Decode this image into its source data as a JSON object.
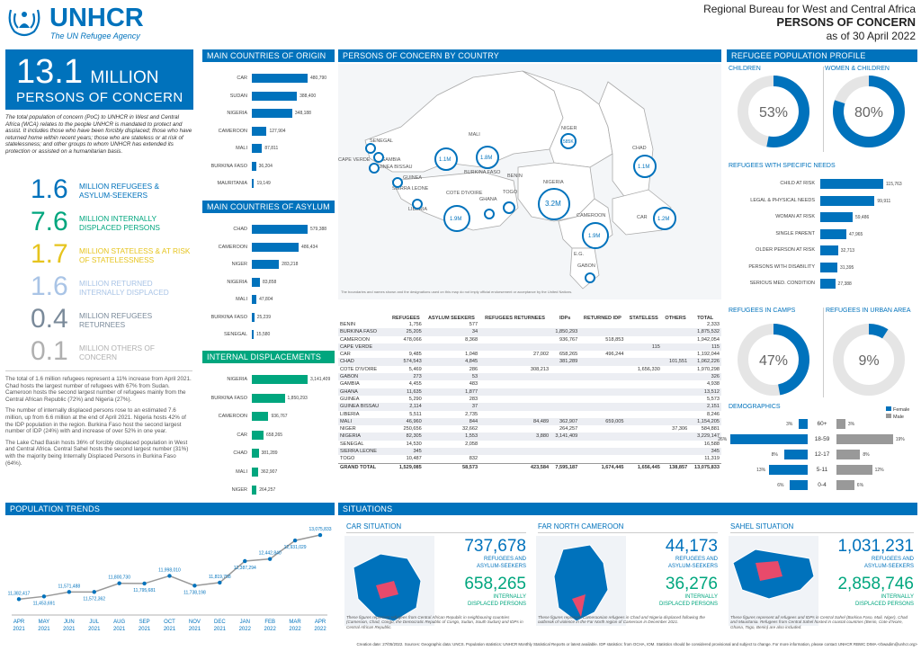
{
  "header": {
    "org": "UNHCR",
    "tagline": "The UN Refugee Agency",
    "region": "Regional Bureau for West and Central Africa",
    "title": "PERSONS OF CONCERN",
    "date": "as of 30 April 2022"
  },
  "hero": {
    "number": "13.1",
    "unit": "MILLION",
    "label": "PERSONS OF CONCERN"
  },
  "intro": "The total population of concern (PoC) to UNHCR in West and Central Africa (WCA) relates to the people UNHCR is mandated to protect and assist. It includes those who have been forcibly displaced; those who have returned home within recent years; those who are stateless or at risk of statelessness; and other groups to whom UNHCR has extended its protection or assisted on a humanitarian basis.",
  "kpis": [
    {
      "value": "1.6",
      "label": "MILLION REFUGEES & ASYLUM-SEEKERS",
      "color": "#0072bc"
    },
    {
      "value": "7.6",
      "label": "MILLION INTERNALLY DISPLACED PERSONS",
      "color": "#00a67e"
    },
    {
      "value": "1.7",
      "label": "MILLION STATELESS & AT RISK OF STATELESSNESS",
      "color": "#e6c41e"
    },
    {
      "value": "1.6",
      "label": "MILLION RETURNED INTERNALLY DISPLACED",
      "color": "#a9c4e6"
    },
    {
      "value": "0.4",
      "label": "MILLION REFUGEES RETURNEES",
      "color": "#7a8a9a"
    },
    {
      "value": "0.1",
      "label": "MILLION OTHERS OF CONCERN",
      "color": "#b0b0b0"
    }
  ],
  "notes": [
    "The total of 1.6 million refugees represent a 11% increase from April 2021. Chad hosts the largest number of refugees with 67% from Sudan. Cameroon hosts the second largest number of refugees mainly from the Central African Republic (72%) and Nigeria (27%).",
    "The number of internally displaced persons rose to an estimated 7.6 million, up from 6.6 million at the end of April 2021. Nigeria hosts 42% of the IDP population in the region. Burkina Faso host the second largest number of IDP (24%) with and increase of over 52% in one year.",
    "The Lake Chad Basin hosts 36% of forcibly displaced population in West and Central Africa. Central Sahel hosts the second largest number (31%) with the majority being Internally Displaced Persons in Burkina Faso (64%)."
  ],
  "origin": {
    "title": "MAIN COUNTRIES OF ORIGIN",
    "items": [
      [
        "CAR",
        "480,790",
        480790
      ],
      [
        "SUDAN",
        "388,400",
        388400
      ],
      [
        "NIGERIA",
        "348,188",
        348188
      ],
      [
        "CAMEROON",
        "127,904",
        127904
      ],
      [
        "MALI",
        "87,811",
        87811
      ],
      [
        "BURKINA FASO",
        "36,204",
        36204
      ],
      [
        "MAURITANIA",
        "19,149",
        19149
      ]
    ]
  },
  "asylum": {
    "title": "MAIN COUNTRIES OF ASYLUM",
    "items": [
      [
        "CHAD",
        "579,388",
        579388
      ],
      [
        "CAMEROON",
        "486,434",
        486434
      ],
      [
        "NIGER",
        "283,218",
        283218
      ],
      [
        "NIGERIA",
        "83,858",
        83858
      ],
      [
        "MALI",
        "47,804",
        47804
      ],
      [
        "BURKINA FASO",
        "25,239",
        25239
      ],
      [
        "SENEGAL",
        "15,580",
        15580
      ]
    ]
  },
  "idp": {
    "title": "INTERNAL DISPLACEMENTS",
    "items": [
      [
        "NIGERIA",
        "3,141,409",
        3141409
      ],
      [
        "BURKINA FASO",
        "1,850,293",
        1850293
      ],
      [
        "CAMEROON",
        "936,767",
        936767
      ],
      [
        "CAR",
        "658,265",
        658265
      ],
      [
        "CHAD",
        "381,289",
        381289
      ],
      [
        "MALI",
        "362,907",
        362907
      ],
      [
        "NIGER",
        "264,257",
        264257
      ]
    ]
  },
  "map": {
    "title": "PERSONS OF CONCERN BY COUNTRY",
    "disclaimer": "The boundaries and names shown and the designations used on this map do not imply official endorsement or acceptance by the United Nations.",
    "countries": [
      "MALI",
      "NIGER",
      "CHAD",
      "NIGERIA",
      "CAMEROON",
      "CAR",
      "SENEGAL",
      "GAMBIA",
      "GUINEA BISSAU",
      "GUINEA",
      "SIERRA LEONE",
      "LIBERIA",
      "COTE D'IVOIRE",
      "BURKINA FASO",
      "GHANA",
      "TOGO",
      "BENIN",
      "CAPE VERDE",
      "E.G.",
      "GABON"
    ],
    "bubbles": [
      "1.1M",
      "1.8M",
      "585K",
      "1.1M",
      "3.2M",
      "1.9M",
      "1.9M",
      "1.2M"
    ]
  },
  "table": {
    "headers": [
      "",
      "REFUGEES",
      "ASYLUM SEEKERS",
      "REFUGEES RETURNEES",
      "IDPs",
      "RETURNED IDP",
      "STATELESS",
      "OTHERS",
      "TOTAL"
    ],
    "rows": [
      [
        "BENIN",
        "1,756",
        "577",
        "",
        "",
        "",
        "",
        "",
        "2,333"
      ],
      [
        "BURKINA FASO",
        "25,205",
        "34",
        "",
        "1,850,293",
        "",
        "",
        "",
        "1,875,532"
      ],
      [
        "CAMEROON",
        "478,066",
        "8,368",
        "",
        "936,767",
        "518,853",
        "",
        "",
        "1,942,054"
      ],
      [
        "CAPE VERDE",
        "",
        "",
        "",
        "",
        "",
        "115",
        "",
        "115"
      ],
      [
        "CAR",
        "9,485",
        "1,048",
        "27,002",
        "658,265",
        "496,244",
        "",
        "",
        "1,192,044"
      ],
      [
        "CHAD",
        "574,543",
        "4,845",
        "",
        "381,289",
        "",
        "",
        "101,551",
        "1,062,226"
      ],
      [
        "COTE D'IVOIRE",
        "5,469",
        "286",
        "308,213",
        "",
        "",
        "1,656,330",
        "",
        "1,970,298"
      ],
      [
        "GABON",
        "273",
        "53",
        "",
        "",
        "",
        "",
        "",
        "326"
      ],
      [
        "GAMBIA",
        "4,455",
        "483",
        "",
        "",
        "",
        "",
        "",
        "4,938"
      ],
      [
        "GHANA",
        "11,635",
        "1,877",
        "",
        "",
        "",
        "",
        "",
        "13,512"
      ],
      [
        "GUINEA",
        "5,290",
        "283",
        "",
        "",
        "",
        "",
        "",
        "5,573"
      ],
      [
        "GUINEA BISSAU",
        "2,114",
        "37",
        "",
        "",
        "",
        "",
        "",
        "2,151"
      ],
      [
        "LIBERIA",
        "5,511",
        "2,735",
        "",
        "",
        "",
        "",
        "",
        "8,246"
      ],
      [
        "MALI",
        "46,960",
        "844",
        "84,489",
        "362,907",
        "659,005",
        "",
        "",
        "1,154,205"
      ],
      [
        "NIGER",
        "250,656",
        "32,662",
        "",
        "264,257",
        "",
        "",
        "37,306",
        "584,881"
      ],
      [
        "NIGERIA",
        "82,305",
        "1,553",
        "3,880",
        "3,141,409",
        "",
        "",
        "",
        "3,229,147"
      ],
      [
        "SENEGAL",
        "14,530",
        "2,058",
        "",
        "",
        "",
        "",
        "",
        "16,588"
      ],
      [
        "SIERRA LEONE",
        "345",
        "",
        "",
        "",
        "",
        "",
        "",
        "345"
      ],
      [
        "TOGO",
        "10,487",
        "832",
        "",
        "",
        "",
        "",
        "",
        "11,319"
      ]
    ],
    "total": [
      "GRAND TOTAL",
      "1,529,085",
      "58,573",
      "423,584",
      "7,595,187",
      "1,674,445",
      "1,656,445",
      "138,857",
      "13,075,833"
    ]
  },
  "profile": {
    "title": "REFUGEE POPULATION PROFILE",
    "children_label": "CHILDREN",
    "children_pct": "53%",
    "children_val": 53,
    "wc_label": "WOMEN & CHILDREN",
    "wc_pct": "80%",
    "wc_val": 80
  },
  "needs": {
    "title": "REFUGEES WITH SPECIFIC NEEDS",
    "items": [
      [
        "CHILD AT RISK",
        "115,763",
        115763
      ],
      [
        "LEGAL & PHYSICAL NEEDS",
        "99,911",
        99911
      ],
      [
        "WOMAN AT RISK",
        "59,486",
        59486
      ],
      [
        "SINGLE PARENT",
        "47,965",
        47965
      ],
      [
        "OLDER PERSON AT RISK",
        "32,713",
        32713
      ],
      [
        "PERSONS WITH DISABILITY",
        "31,395",
        31395
      ],
      [
        "SERIOUS MED. CONDITION",
        "27,388",
        27388
      ]
    ]
  },
  "camps": {
    "title": "REFUGEES IN CAMPS",
    "pct": "47%",
    "val": 47
  },
  "urban": {
    "title": "REFUGEES IN URBAN AREA",
    "pct": "9%",
    "val": 9
  },
  "demo": {
    "title": "DEMOGRAPHICS",
    "legend_f": "Female",
    "legend_m": "Male",
    "rows": [
      [
        "60+",
        "3%",
        "3%",
        3,
        3
      ],
      [
        "18-59",
        "26%",
        "19%",
        26,
        19
      ],
      [
        "12-17",
        "8%",
        "8%",
        8,
        8
      ],
      [
        "5-11",
        "13%",
        "12%",
        13,
        12
      ],
      [
        "0-4",
        "6%",
        "6%",
        6,
        6
      ]
    ]
  },
  "trends": {
    "title": "POPULATION TRENDS",
    "chart_data": {
      "type": "line",
      "categories": [
        "APR 2021",
        "MAY 2021",
        "JUN 2021",
        "JUL 2021",
        "AUG 2021",
        "SEP 2021",
        "OCT 2021",
        "NOV 2021",
        "DEC 2021",
        "JAN 2022",
        "FEB 2022",
        "MAR 2022",
        "APR 2022"
      ],
      "values": [
        11382417,
        11453691,
        11571488,
        11572362,
        11800730,
        11795681,
        11998010,
        11738198,
        11819758,
        12387294,
        12442840,
        12931029,
        13075833
      ],
      "labels": [
        "11,382,417",
        "11,453,691",
        "11,571,488",
        "11,572,362",
        "11,800,730",
        "11,795,681",
        "11,998,010",
        "11,738,198",
        "11,819,758",
        "12,387,294",
        "12,442,840",
        "12,931,029",
        "13,075,833"
      ]
    }
  },
  "situations": {
    "title": "SITUATIONS",
    "cards": [
      {
        "title": "CAR SITUATION",
        "n1": "737,678",
        "l1": "REFUGEES AND ASYLUM-SEEKERS",
        "n2": "658,265",
        "l2": "INTERNALLY DISPLACED PERSONS",
        "note": "These figures represent refugees from Central African Republic in neighbouring countries (Cameroon, Chad, Congo, the Democratic Republic of Congo, Sudan, South Sudan) and IDPs in Central African Republic."
      },
      {
        "title": "FAR NORTH CAMEROON",
        "n1": "44,173",
        "l1": "REFUGEES AND ASYLUM-SEEKERS",
        "n2": "36,276",
        "l2": "INTERNALLY DISPLACED PERSONS",
        "note": "These figures represent Cameroonian refugees in Chad and Nigeria displaced following the outbreak of violence in the Far North region of Cameroon in December 2021."
      },
      {
        "title": "SAHEL SITUATION",
        "n1": "1,031,231",
        "l1": "REFUGEES AND ASYLUM-SEEKERS",
        "n2": "2,858,746",
        "l2": "INTERNALLY DISPLACED PERSONS",
        "note": "These figures represent all refugees and IDPs in Central Sahel (Burkina Faso, Mali, Niger), Chad and Mauritania. Refugees from Central Sahel hosted in coastal countries (Benin, Cote d'Ivoire, Ghana, Togo, Benin) are also included."
      }
    ]
  },
  "footer": "Creation date: 27/05/2022. Sources: Geographic data: UNCS. Population statistics: UNHCR Monthly Statistical Reports or latest available. IDP statistics: from OCHA, IOM. Statistics should be considered provisional and subject to change. For more information, please contact UNHCR RBWC DIMA <rbwadim@unhcr.org>"
}
